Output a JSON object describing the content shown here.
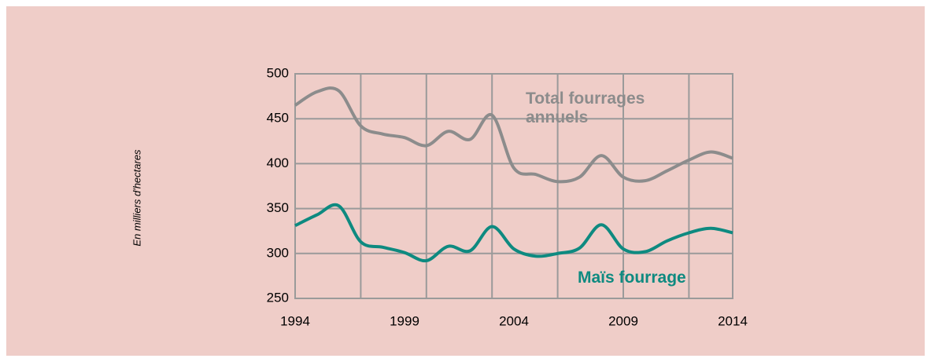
{
  "chart_data": {
    "type": "line",
    "y_label": "En milliers d'hectares",
    "x": [
      1994,
      1995,
      1996,
      1997,
      1998,
      1999,
      2000,
      2001,
      2002,
      2003,
      2004,
      2005,
      2006,
      2007,
      2008,
      2009,
      2010,
      2011,
      2012,
      2013,
      2014
    ],
    "series": [
      {
        "name": "Total fourrages annuels",
        "color": "#8c8c8c",
        "values": [
          465,
          480,
          481,
          442,
          433,
          429,
          420,
          436,
          427,
          454,
          395,
          388,
          380,
          385,
          409,
          385,
          381,
          392,
          404,
          413,
          406
        ]
      },
      {
        "name": "Maïs fourrage",
        "color": "#0e8a80",
        "values": [
          331,
          343,
          353,
          313,
          307,
          301,
          292,
          308,
          303,
          330,
          305,
          297,
          300,
          306,
          332,
          305,
          302,
          314,
          323,
          328,
          323
        ]
      }
    ],
    "xlim": [
      1994,
      2014
    ],
    "xticks": [
      1994,
      1999,
      2004,
      2009,
      2014
    ],
    "xgrid": [
      1997,
      2000,
      2003,
      2006,
      2009,
      2012
    ],
    "ylim": [
      250,
      500
    ],
    "yticks": [
      250,
      300,
      350,
      400,
      450,
      500
    ],
    "grid": true
  }
}
